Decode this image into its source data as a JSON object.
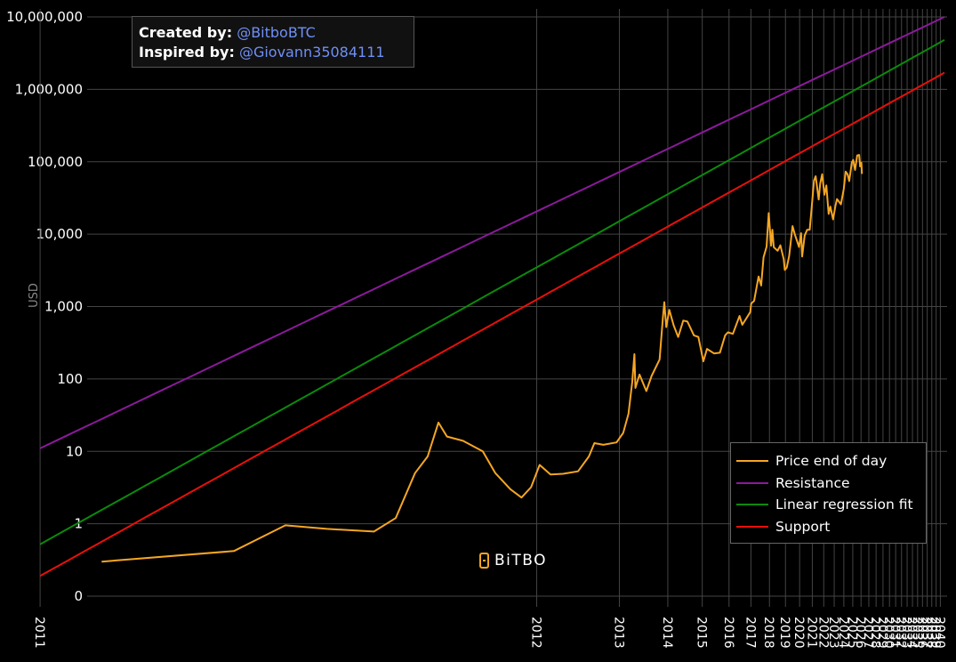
{
  "credits": {
    "created_label": "Created by:",
    "created_handle": "@BitboBTC",
    "inspired_label": "Inspired by:",
    "inspired_handle": "@Giovann35084111"
  },
  "brand": "BiTBO",
  "colors": {
    "background": "#000000",
    "grid": "#444444",
    "price": "#f5a623",
    "resistance": "#8b1a9b",
    "regression": "#0b8a0b",
    "support": "#e8100a",
    "handle": "#6f8ff5"
  },
  "chart_data": {
    "type": "line",
    "title": "",
    "ylabel": "USD",
    "xlabel": "",
    "yscale": "log",
    "ylim": [
      0.1,
      10000000
    ],
    "xlim": [
      "2011-01-01",
      "2040-12-31"
    ],
    "grid": true,
    "legend_position": "bottom-right",
    "ytick_labels": [
      "0",
      "1",
      "10",
      "100",
      "1,000",
      "10,000",
      "100,000",
      "1,000,000",
      "10,000,000"
    ],
    "ytick_values": [
      0.1,
      1,
      10,
      100,
      1000,
      10000,
      100000,
      1000000,
      10000000
    ],
    "xtick_labels": [
      "2011",
      "2012",
      "2013",
      "2014",
      "2015",
      "2016",
      "2017",
      "2018",
      "2019",
      "2020",
      "2021",
      "2022",
      "2023",
      "2024",
      "2025",
      "2026",
      "2027",
      "2028",
      "2029",
      "2030",
      "2031",
      "2032",
      "2033",
      "2034",
      "2035",
      "2036",
      "2037",
      "2038",
      "2039",
      "2040"
    ],
    "legend": [
      "Price end of day",
      "Resistance",
      "Linear regression fit",
      "Support"
    ],
    "series": [
      {
        "name": "Price end of day",
        "color": "#f5a623",
        "points": [
          [
            "2011-01-05",
            0.3
          ],
          [
            "2011-01-25",
            0.42
          ],
          [
            "2011-02-10",
            0.95
          ],
          [
            "2011-03-01",
            0.85
          ],
          [
            "2011-04-01",
            0.78
          ],
          [
            "2011-04-20",
            1.2
          ],
          [
            "2011-05-10",
            5.0
          ],
          [
            "2011-05-25",
            8.5
          ],
          [
            "2011-06-08",
            25.0
          ],
          [
            "2011-06-20",
            16.0
          ],
          [
            "2011-07-15",
            14.0
          ],
          [
            "2011-08-20",
            10.0
          ],
          [
            "2011-09-15",
            5.0
          ],
          [
            "2011-10-20",
            3.0
          ],
          [
            "2011-11-18",
            2.3
          ],
          [
            "2011-12-15",
            3.2
          ],
          [
            "2012-01-10",
            6.5
          ],
          [
            "2012-02-15",
            4.8
          ],
          [
            "2012-04-01",
            4.9
          ],
          [
            "2012-06-01",
            5.3
          ],
          [
            "2012-07-20",
            8.5
          ],
          [
            "2012-08-16",
            13.0
          ],
          [
            "2012-10-01",
            12.3
          ],
          [
            "2012-12-15",
            13.3
          ],
          [
            "2013-01-25",
            18.0
          ],
          [
            "2013-02-28",
            33.0
          ],
          [
            "2013-03-25",
            90.0
          ],
          [
            "2013-04-09",
            220.0
          ],
          [
            "2013-04-16",
            75.0
          ],
          [
            "2013-05-15",
            115.0
          ],
          [
            "2013-07-05",
            68.0
          ],
          [
            "2013-08-15",
            110.0
          ],
          [
            "2013-10-20",
            185.0
          ],
          [
            "2013-11-18",
            700.0
          ],
          [
            "2013-11-30",
            1150.0
          ],
          [
            "2013-12-18",
            520.0
          ],
          [
            "2014-01-15",
            900.0
          ],
          [
            "2014-02-25",
            550.0
          ],
          [
            "2014-04-10",
            380.0
          ],
          [
            "2014-06-01",
            640.0
          ],
          [
            "2014-07-15",
            620.0
          ],
          [
            "2014-09-25",
            400.0
          ],
          [
            "2014-11-15",
            380.0
          ],
          [
            "2015-01-14",
            175.0
          ],
          [
            "2015-03-01",
            260.0
          ],
          [
            "2015-06-01",
            225.0
          ],
          [
            "2015-08-20",
            230.0
          ],
          [
            "2015-11-04",
            400.0
          ],
          [
            "2015-12-15",
            440.0
          ],
          [
            "2016-03-01",
            420.0
          ],
          [
            "2016-06-16",
            740.0
          ],
          [
            "2016-08-01",
            560.0
          ],
          [
            "2016-12-20",
            840.0
          ],
          [
            "2017-01-05",
            1100.0
          ],
          [
            "2017-03-01",
            1200.0
          ],
          [
            "2017-05-25",
            2600.0
          ],
          [
            "2017-07-15",
            1950.0
          ],
          [
            "2017-09-01",
            4800.0
          ],
          [
            "2017-11-01",
            6700.0
          ],
          [
            "2017-12-17",
            19500.0
          ],
          [
            "2018-02-06",
            6900.0
          ],
          [
            "2018-03-05",
            11500.0
          ],
          [
            "2018-04-06",
            6600.0
          ],
          [
            "2018-06-29",
            5900.0
          ],
          [
            "2018-09-01",
            7000.0
          ],
          [
            "2018-11-20",
            4500.0
          ],
          [
            "2018-12-15",
            3200.0
          ],
          [
            "2019-02-01",
            3450.0
          ],
          [
            "2019-04-02",
            5000.0
          ],
          [
            "2019-06-26",
            12900.0
          ],
          [
            "2019-09-01",
            9700.0
          ],
          [
            "2019-12-17",
            6650.0
          ],
          [
            "2020-02-10",
            10300.0
          ],
          [
            "2020-03-12",
            4900.0
          ],
          [
            "2020-05-20",
            9500.0
          ],
          [
            "2020-08-01",
            11500.0
          ],
          [
            "2020-10-15",
            11500.0
          ],
          [
            "2020-12-31",
            29000.0
          ],
          [
            "2021-02-20",
            55000.0
          ],
          [
            "2021-04-14",
            63000.0
          ],
          [
            "2021-07-20",
            30000.0
          ],
          [
            "2021-09-05",
            50000.0
          ],
          [
            "2021-11-10",
            67000.0
          ],
          [
            "2022-01-22",
            35000.0
          ],
          [
            "2022-03-28",
            47000.0
          ],
          [
            "2022-06-18",
            19000.0
          ],
          [
            "2022-08-15",
            24000.0
          ],
          [
            "2022-11-21",
            16000.0
          ],
          [
            "2023-02-15",
            24500.0
          ],
          [
            "2023-04-15",
            30500.0
          ],
          [
            "2023-09-10",
            25800.0
          ],
          [
            "2023-12-31",
            42000.0
          ],
          [
            "2024-03-13",
            73000.0
          ],
          [
            "2024-06-01",
            67000.0
          ],
          [
            "2024-08-05",
            54000.0
          ],
          [
            "2024-11-22",
            98000.0
          ],
          [
            "2025-01-20",
            106000.0
          ],
          [
            "2025-04-08",
            77000.0
          ],
          [
            "2025-07-14",
            122000.0
          ],
          [
            "2025-10-06",
            124000.0
          ],
          [
            "2025-11-20",
            86000.0
          ],
          [
            "2026-01-14",
            97000.0
          ],
          [
            "2026-02-10",
            68000.0
          ]
        ]
      },
      {
        "name": "Resistance",
        "color": "#8b1a9b",
        "points": [
          [
            "2011-01-01",
            11.0
          ],
          [
            "2040-12-31",
            10000000.0
          ]
        ]
      },
      {
        "name": "Linear regression fit",
        "color": "#0b8a0b",
        "points": [
          [
            "2011-01-01",
            0.52
          ],
          [
            "2040-12-31",
            4800000.0
          ]
        ]
      },
      {
        "name": "Support",
        "color": "#e8100a",
        "points": [
          [
            "2011-01-01",
            0.19
          ],
          [
            "2040-12-31",
            1700000.0
          ]
        ]
      }
    ]
  }
}
